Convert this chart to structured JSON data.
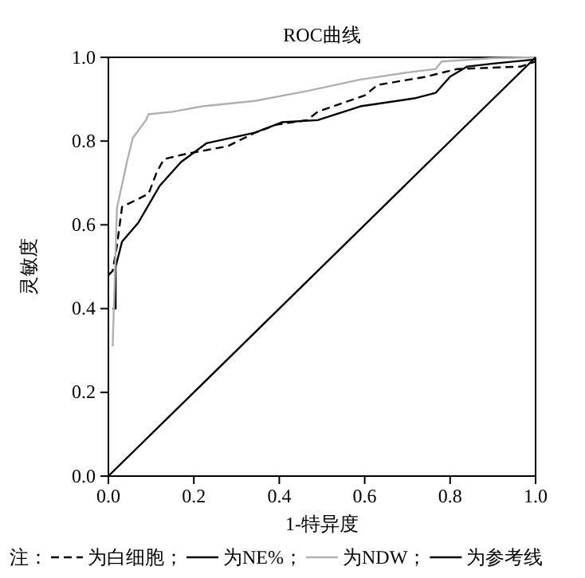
{
  "chart_data": {
    "type": "line",
    "title": "ROC曲线",
    "xlabel": "1-特异度",
    "ylabel": "灵敏度",
    "legend_title": "注：",
    "legend": "bottom",
    "grid": false,
    "marker": "none",
    "xlim": [
      0,
      1
    ],
    "ylim": [
      0,
      1
    ],
    "xticks": [
      {
        "value": 0,
        "label": "0.0"
      },
      {
        "value": 0.2,
        "label": "0.2"
      },
      {
        "value": 0.4,
        "label": "0.4"
      },
      {
        "value": 0.6,
        "label": "0.6"
      },
      {
        "value": 0.8,
        "label": "0.8"
      },
      {
        "value": 1,
        "label": "1.0"
      }
    ],
    "yticks": [
      {
        "value": 0,
        "label": "0.0"
      },
      {
        "value": 0.2,
        "label": "0.2"
      },
      {
        "value": 0.4,
        "label": "0.4"
      },
      {
        "value": 0.6,
        "label": "0.6"
      },
      {
        "value": 0.8,
        "label": "0.8"
      },
      {
        "value": 1,
        "label": "1.0"
      }
    ],
    "series": [
      {
        "name": "为白细胞；",
        "color": "#000000",
        "line_style": "dashed",
        "x": [
          0,
          0.01,
          0.02,
          0.032,
          0.094,
          0.113,
          0.13,
          0.18,
          0.28,
          0.343,
          0.393,
          0.465,
          0.49,
          0.6,
          0.63,
          0.74,
          0.816,
          0.965,
          1
        ],
        "values": [
          0.48,
          0.49,
          0.55,
          0.643,
          0.674,
          0.725,
          0.757,
          0.769,
          0.788,
          0.82,
          0.839,
          0.85,
          0.87,
          0.909,
          0.934,
          0.953,
          0.972,
          0.978,
          0.99
        ]
      },
      {
        "name": "为NE%；",
        "color": "#000000",
        "line_style": "solid",
        "x": [
          0.01,
          0.017,
          0.017,
          0.032,
          0.07,
          0.12,
          0.17,
          0.23,
          0.343,
          0.406,
          0.49,
          0.59,
          0.716,
          0.766,
          0.8,
          0.84,
          0.9,
          1
        ],
        "values": [
          0.4,
          0.4,
          0.5,
          0.56,
          0.605,
          0.693,
          0.75,
          0.795,
          0.82,
          0.845,
          0.85,
          0.883,
          0.902,
          0.915,
          0.954,
          0.978,
          0.985,
          0.995
        ]
      },
      {
        "name": "为NDW；",
        "color": "#b0b0b0",
        "line_style": "solid",
        "x": [
          0.01,
          0.02,
          0.045,
          0.057,
          0.088,
          0.094,
          0.15,
          0.22,
          0.343,
          0.467,
          0.59,
          0.716,
          0.766,
          0.78,
          0.9,
          1
        ],
        "values": [
          0.31,
          0.64,
          0.757,
          0.807,
          0.85,
          0.864,
          0.87,
          0.883,
          0.896,
          0.92,
          0.947,
          0.966,
          0.972,
          0.99,
          0.998,
          1
        ]
      },
      {
        "name": "为参考线",
        "color": "#000000",
        "line_style": "solid",
        "x": [
          0,
          1
        ],
        "values": [
          0,
          1
        ]
      }
    ]
  }
}
